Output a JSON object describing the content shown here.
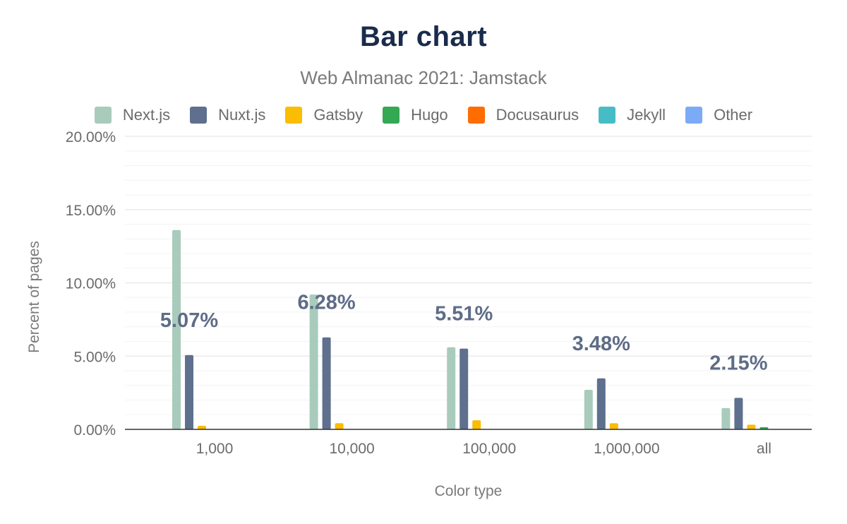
{
  "chart_data": {
    "type": "bar",
    "title": "Bar chart",
    "subtitle": "Web Almanac 2021: Jamstack",
    "xlabel": "Color type",
    "ylabel": "Percent of pages",
    "ylim": [
      0,
      20
    ],
    "yticks": [
      0,
      5,
      10,
      15,
      20
    ],
    "ytick_labels": [
      "0.00%",
      "5.00%",
      "10.00%",
      "15.00%",
      "20.00%"
    ],
    "grid": true,
    "legend_position": "top",
    "categories": [
      "1,000",
      "10,000",
      "100,000",
      "1,000,000",
      "all"
    ],
    "series": [
      {
        "name": "Next.js",
        "color": "#a8cbbc",
        "values": [
          13.6,
          9.2,
          5.6,
          2.7,
          1.45
        ]
      },
      {
        "name": "Nuxt.js",
        "color": "#5f6f8e",
        "values": [
          5.07,
          6.28,
          5.51,
          3.48,
          2.15
        ]
      },
      {
        "name": "Gatsby",
        "color": "#fbbc04",
        "values": [
          0.25,
          0.42,
          0.62,
          0.42,
          0.32
        ]
      },
      {
        "name": "Hugo",
        "color": "#34a853",
        "values": [
          0.0,
          0.0,
          0.0,
          0.0,
          0.15
        ]
      },
      {
        "name": "Docusaurus",
        "color": "#ff6d01",
        "values": [
          0.0,
          0.0,
          0.0,
          0.0,
          0.0
        ]
      },
      {
        "name": "Jekyll",
        "color": "#46bdc6",
        "values": [
          0.0,
          0.0,
          0.0,
          0.0,
          0.0
        ]
      },
      {
        "name": "Other",
        "color": "#7baaf7",
        "values": [
          0.0,
          0.0,
          0.0,
          0.0,
          0.0
        ]
      }
    ],
    "data_labels": [
      "5.07%",
      "6.28%",
      "5.51%",
      "3.48%",
      "2.15%"
    ]
  }
}
